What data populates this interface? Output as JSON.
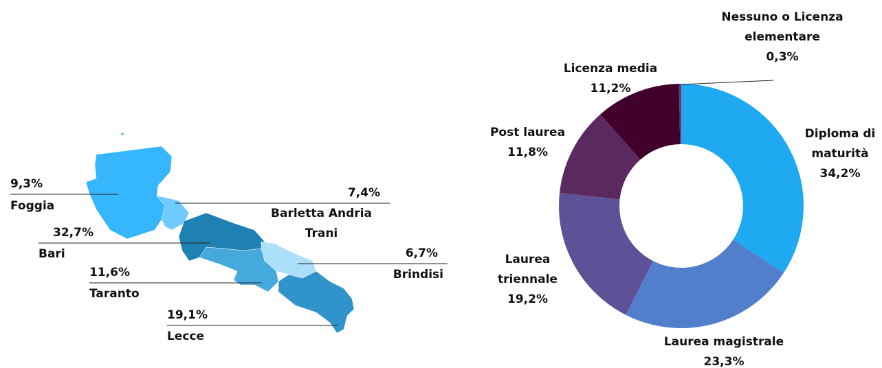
{
  "chart_data": [
    {
      "type": "map",
      "categories": [
        "Foggia",
        "Barletta Andria Trani",
        "Bari",
        "Brindisi",
        "Taranto",
        "Lecce"
      ],
      "values": [
        9.3,
        7.4,
        32.7,
        6.7,
        11.6,
        19.1
      ],
      "value_labels": [
        "9,3%",
        "7,4%",
        "32,7%",
        "6,7%",
        "11,6%",
        "19,1%"
      ],
      "colors": [
        "#36b6fc",
        "#6fcbff",
        "#1f80b3",
        "#abdffa",
        "#45a9de",
        "#3094ca"
      ]
    },
    {
      "type": "donut",
      "categories": [
        "Diploma di maturità",
        "Laurea magistrale",
        "Laurea triennale",
        "Post laurea",
        "Licenza media",
        "Nessuno o Licenza elementare"
      ],
      "values": [
        34.2,
        23.3,
        19.2,
        11.8,
        11.2,
        0.3
      ],
      "value_labels": [
        "34,2%",
        "23,3%",
        "19,2%",
        "11,8%",
        "11,2%",
        "0,3%"
      ],
      "colors": [
        "#1fa9f1",
        "#527fcb",
        "#5e5197",
        "#5a2960",
        "#40002b",
        "#6c3a5d"
      ]
    }
  ]
}
